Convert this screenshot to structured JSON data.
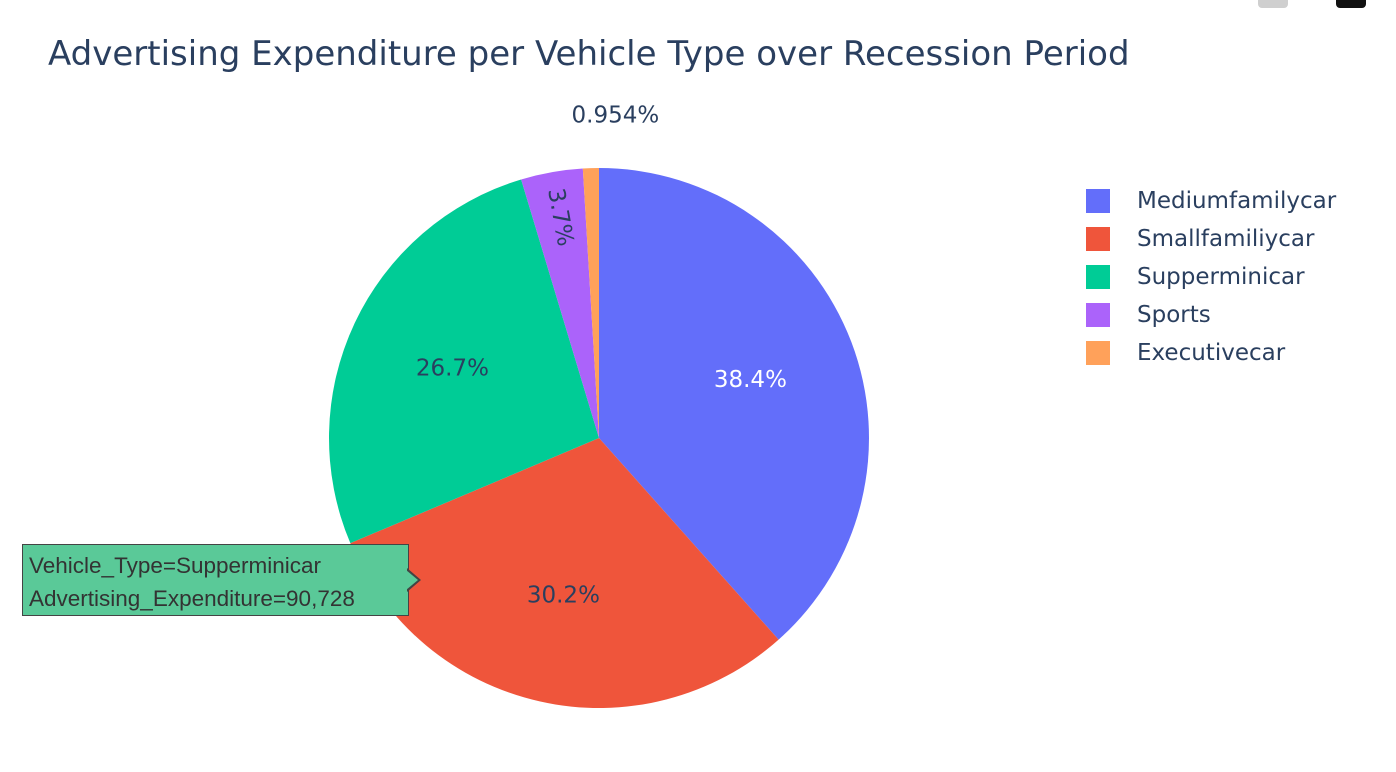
{
  "chart_data": {
    "type": "pie",
    "title": "Advertising Expenditure per Vehicle Type over Recession Period",
    "slices": [
      {
        "label": "Mediumfamilycar",
        "percent": 38.4,
        "percent_label": "38.4%",
        "color": "#636efa",
        "text_color": "#ffffff"
      },
      {
        "label": "Smallfamiliycar",
        "percent": 30.2,
        "percent_label": "30.2%",
        "color": "#ef553b",
        "text_color": "#2a3f5f"
      },
      {
        "label": "Supperminicar",
        "percent": 26.7,
        "percent_label": "26.7%",
        "color": "#00cc96",
        "text_color": "#2a3f5f"
      },
      {
        "label": "Sports",
        "percent": 3.7,
        "percent_label": "3.7%",
        "color": "#ab63fa",
        "text_color": "#2a3f5f"
      },
      {
        "label": "Executivecar",
        "percent": 0.954,
        "percent_label": "0.954%",
        "color": "#ffa15a",
        "text_color": "#2a3f5f"
      }
    ],
    "legend_position": "top-right",
    "direction": "clockwise",
    "start_angle_deg": 90
  },
  "tooltip": {
    "line1": "Vehicle_Type=Supperminicar",
    "line2": "Advertising_Expenditure=90,728",
    "background": "#5ac998"
  }
}
